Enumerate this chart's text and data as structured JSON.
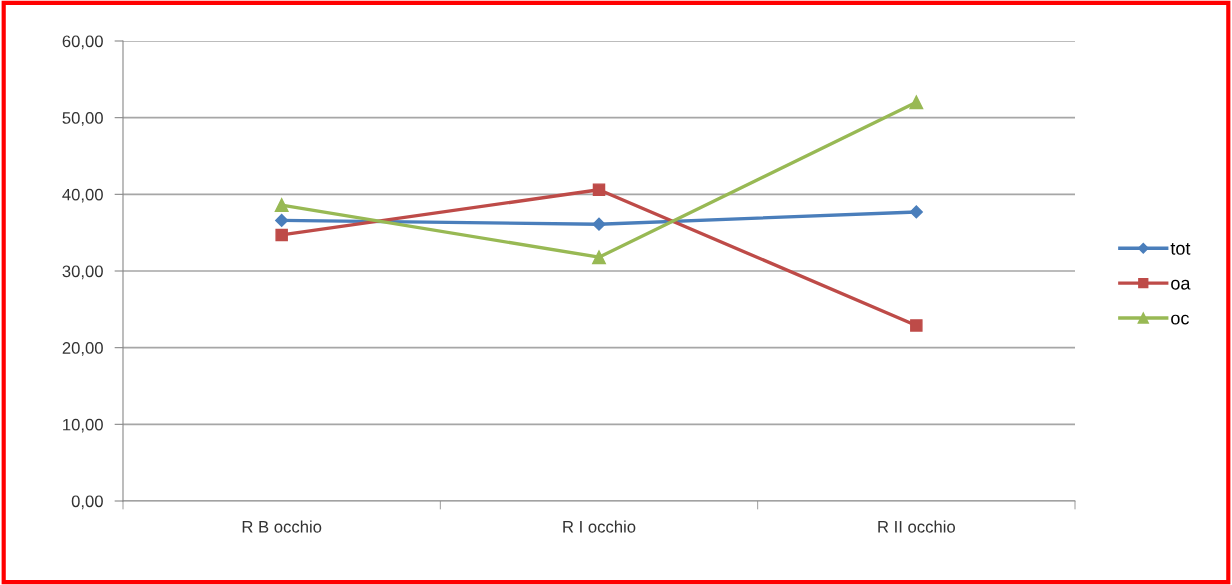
{
  "chart_data": {
    "type": "line",
    "categories": [
      "R B occhio",
      "R I occhio",
      "R II occhio"
    ],
    "series": [
      {
        "name": "tot",
        "color": "#4a7ebb",
        "marker": "diamond",
        "values": [
          36.6,
          36.1,
          37.7
        ]
      },
      {
        "name": "oa",
        "color": "#be4b48",
        "marker": "square",
        "values": [
          34.7,
          40.6,
          22.9
        ]
      },
      {
        "name": "oc",
        "color": "#98b954",
        "marker": "triangle",
        "values": [
          38.6,
          31.8,
          52.0
        ]
      }
    ],
    "ylim": [
      0,
      60
    ],
    "yticks": [
      {
        "value": 0,
        "label": "0,00"
      },
      {
        "value": 10,
        "label": "10,00"
      },
      {
        "value": 20,
        "label": "20,00"
      },
      {
        "value": 30,
        "label": "30,00"
      },
      {
        "value": 40,
        "label": "40,00"
      },
      {
        "value": 50,
        "label": "50,00"
      },
      {
        "value": 60,
        "label": "60,00"
      }
    ],
    "grid": "y",
    "legend": "right",
    "line_style": "solid"
  }
}
